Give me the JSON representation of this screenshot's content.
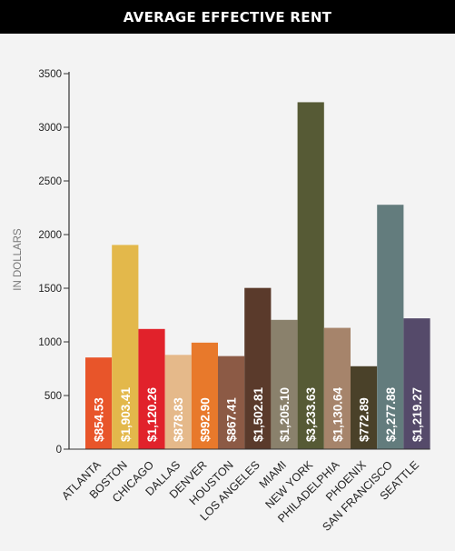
{
  "chart_data": {
    "type": "bar",
    "title": "AVERAGE EFFECTIVE RENT",
    "xlabel": "",
    "ylabel": "IN DOLLARS",
    "ylim": [
      0,
      3500
    ],
    "yticks": [
      0,
      500,
      1000,
      1500,
      2000,
      2500,
      3000,
      3500
    ],
    "grid": false,
    "legend": "none",
    "categories": [
      "ATLANTA",
      "BOSTON",
      "CHICAGO",
      "DALLAS",
      "DENVER",
      "HOUSTON",
      "LOS ANGELES",
      "MIAMI",
      "NEW YORK",
      "PHILADELPHIA",
      "PHOENIX",
      "SAN FRANCISCO",
      "SEATTLE"
    ],
    "values": [
      854.53,
      1903.41,
      1120.26,
      878.83,
      992.9,
      867.41,
      1502.81,
      1205.1,
      3233.63,
      1130.64,
      772.89,
      2277.88,
      1219.27
    ],
    "data_labels": [
      "$854.53",
      "$1,903.41",
      "$1,120.26",
      "$878.83",
      "$992.90",
      "$867.41",
      "$1,502.81",
      "$1,205.10",
      "$3,233.63",
      "$1,130.64",
      "$772.89",
      "$2,277.88",
      "$1,219.27"
    ],
    "colors": [
      "#e8552a",
      "#e3b84b",
      "#e1222b",
      "#e5b98a",
      "#e8792b",
      "#8c5a45",
      "#5a3a2b",
      "#8a816c",
      "#565a35",
      "#a6846b",
      "#4a4129",
      "#637c7d",
      "#554a6a"
    ]
  }
}
